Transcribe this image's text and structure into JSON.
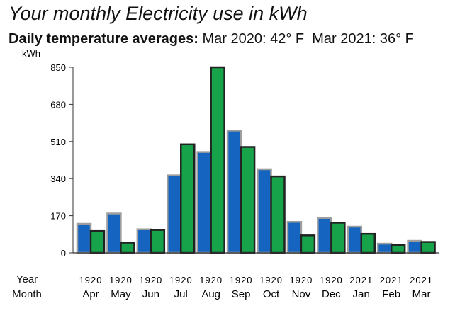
{
  "title": "Your monthly Electricity use in kWh",
  "subtitle": {
    "lead": "Daily temperature averages:",
    "mar2020": "Mar 2020: 42° F",
    "mar2021": "Mar 2021: 36° F"
  },
  "row_labels": {
    "year": "Year",
    "month": "Month"
  },
  "colors": {
    "prior_year": "#1565c0",
    "current_year": "#16a34a",
    "prior_outline": "#9e9e9e",
    "current_outline": "#222222",
    "axis": "#333333"
  },
  "chart_data": {
    "type": "bar",
    "title": "Your monthly Electricity use in kWh",
    "ylabel": "kWh",
    "xlabel": "",
    "ylim": [
      0,
      850
    ],
    "yticks": [
      0,
      170,
      340,
      510,
      680,
      850
    ],
    "grid": false,
    "categories": [
      "Apr",
      "May",
      "Jun",
      "Jul",
      "Aug",
      "Sep",
      "Oct",
      "Nov",
      "Dec",
      "Jan",
      "Feb",
      "Mar"
    ],
    "year_labels": [
      "1920",
      "1920",
      "1920",
      "1920",
      "1920",
      "1920",
      "1920",
      "1920",
      "1920",
      "2021",
      "2021",
      "2021"
    ],
    "series": [
      {
        "values": [
          133,
          180,
          108,
          355,
          462,
          560,
          383,
          142,
          160,
          120,
          42,
          55
        ]
      },
      {
        "values": [
          100,
          47,
          105,
          497,
          850,
          485,
          350,
          80,
          138,
          87,
          35,
          50
        ]
      }
    ]
  }
}
